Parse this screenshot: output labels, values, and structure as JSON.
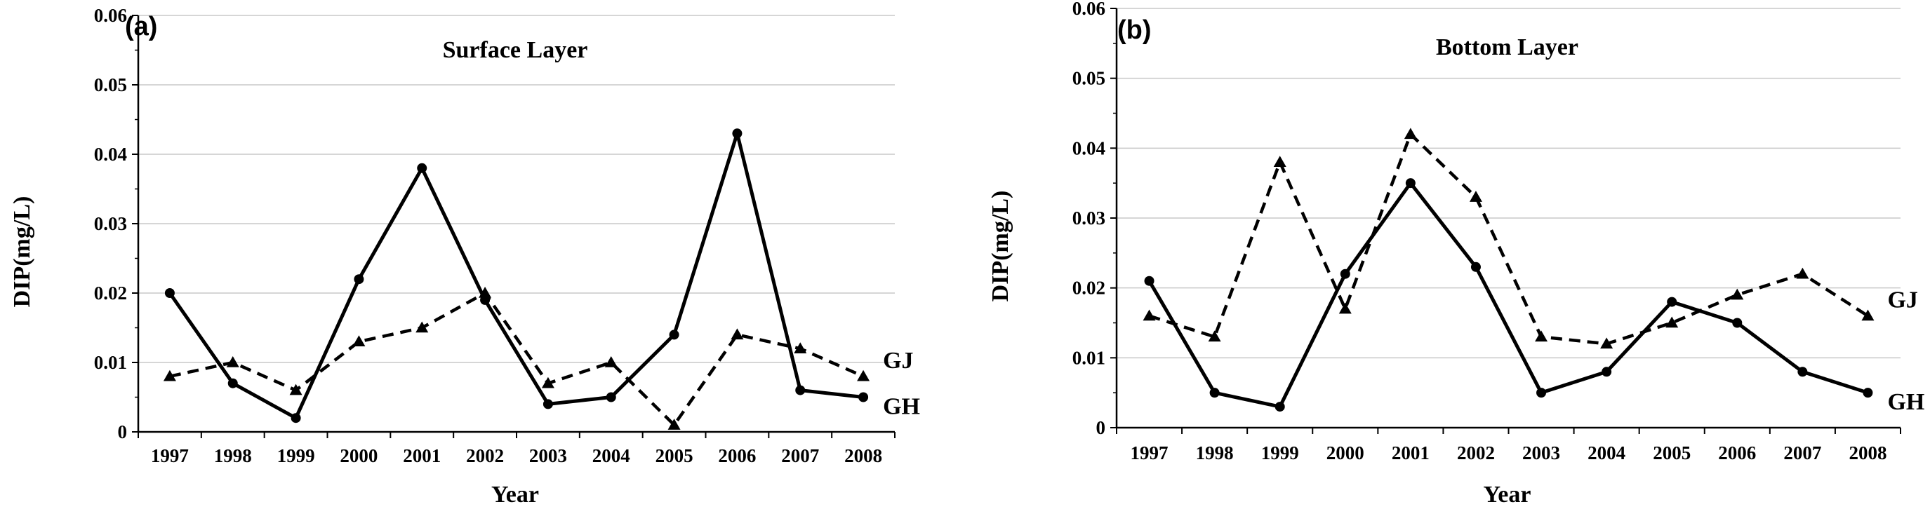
{
  "chart_data": [
    {
      "type": "line",
      "panel_label": "(a)",
      "title": "Surface Layer",
      "xlabel": "Year",
      "ylabel": "DIP(mg/L)",
      "ylim": [
        0,
        0.06
      ],
      "y_ticks": [
        "0",
        "0.01",
        "0.02",
        "0.03",
        "0.04",
        "0.05",
        "0.06"
      ],
      "categories": [
        "1997",
        "1998",
        "1999",
        "2000",
        "2001",
        "2002",
        "2003",
        "2004",
        "2005",
        "2006",
        "2007",
        "2008"
      ],
      "grid": true,
      "series": [
        {
          "name": "GH",
          "style": "solid",
          "marker": "circle",
          "values": [
            0.02,
            0.007,
            0.002,
            0.022,
            0.038,
            0.019,
            0.004,
            0.005,
            0.014,
            0.043,
            0.006,
            0.005
          ]
        },
        {
          "name": "GJ",
          "style": "dashed",
          "marker": "triangle",
          "values": [
            0.008,
            0.01,
            0.006,
            0.013,
            0.015,
            0.02,
            0.007,
            0.01,
            0.001,
            0.014,
            0.012,
            0.008
          ]
        }
      ]
    },
    {
      "type": "line",
      "panel_label": "(b)",
      "title": "Bottom Layer",
      "xlabel": "Year",
      "ylabel": "DIP(mg/L)",
      "ylim": [
        0,
        0.06
      ],
      "y_ticks": [
        "0",
        "0.01",
        "0.02",
        "0.03",
        "0.04",
        "0.05",
        "0.06"
      ],
      "categories": [
        "1997",
        "1998",
        "1999",
        "2000",
        "2001",
        "2002",
        "2003",
        "2004",
        "2005",
        "2006",
        "2007",
        "2008"
      ],
      "grid": true,
      "series": [
        {
          "name": "GH",
          "style": "solid",
          "marker": "circle",
          "values": [
            0.021,
            0.005,
            0.003,
            0.022,
            0.035,
            0.023,
            0.005,
            0.008,
            0.018,
            0.015,
            0.008,
            0.005
          ]
        },
        {
          "name": "GJ",
          "style": "dashed",
          "marker": "triangle",
          "values": [
            0.016,
            0.013,
            0.038,
            0.017,
            0.042,
            0.033,
            0.013,
            0.012,
            0.015,
            0.019,
            0.022,
            0.016
          ]
        }
      ]
    }
  ]
}
